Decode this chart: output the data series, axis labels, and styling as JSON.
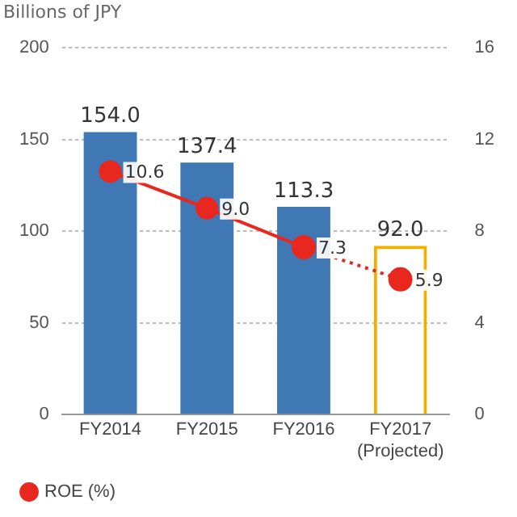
{
  "chart_data": {
    "type": "bar",
    "ylabel": "Billions of JPY",
    "categories": [
      "FY2014",
      "FY2015",
      "FY2016",
      "FY2017\n(Projected)"
    ],
    "series": [
      {
        "color": "#3f78b5",
        "values": [
          154.0,
          137.4,
          113.3,
          null
        ],
        "value_labels": [
          "154.0",
          "137.4",
          "113.3",
          null
        ]
      },
      {
        "color": "#f0b000",
        "line_style": "solid",
        "values": [
          null,
          null,
          null,
          92.0
        ],
        "value_labels": [
          null,
          null,
          null,
          "92.0"
        ]
      },
      {
        "type": "line",
        "name": "ROE (%)",
        "color": "#e8281e",
        "axis": "y2",
        "marker": "circle",
        "line_style": "solid",
        "values": [
          10.6,
          9.0,
          7.3,
          null
        ],
        "value_labels": [
          "10.6",
          "9.0",
          "7.3",
          null
        ]
      },
      {
        "type": "line",
        "color": "#e8281e",
        "axis": "y2",
        "marker": "circle",
        "line_style": "dotted",
        "values": [
          null,
          null,
          7.3,
          5.9
        ],
        "value_labels": [
          null,
          null,
          null,
          "5.9"
        ]
      }
    ],
    "ylim": [
      0,
      200
    ],
    "yticks": [
      0,
      50,
      100,
      150,
      200
    ],
    "y2lim": [
      0,
      16
    ],
    "y2ticks": [
      0,
      4,
      8,
      12,
      16
    ],
    "grid": "y",
    "legend": "bottom left"
  }
}
